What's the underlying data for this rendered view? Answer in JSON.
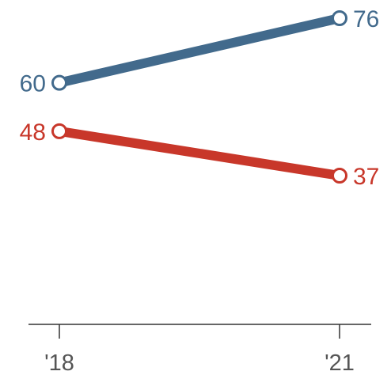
{
  "chart_data": {
    "type": "line",
    "x": [
      "'18",
      "'21"
    ],
    "series": [
      {
        "values": [
          60,
          76
        ],
        "color": "#426a8c"
      },
      {
        "values": [
          48,
          37
        ],
        "color": "#c8372a"
      }
    ],
    "xlabel": "",
    "ylabel": "",
    "ylim": [
      0,
      80
    ],
    "grid": false,
    "legend": "none",
    "axis_color": "#333333"
  }
}
